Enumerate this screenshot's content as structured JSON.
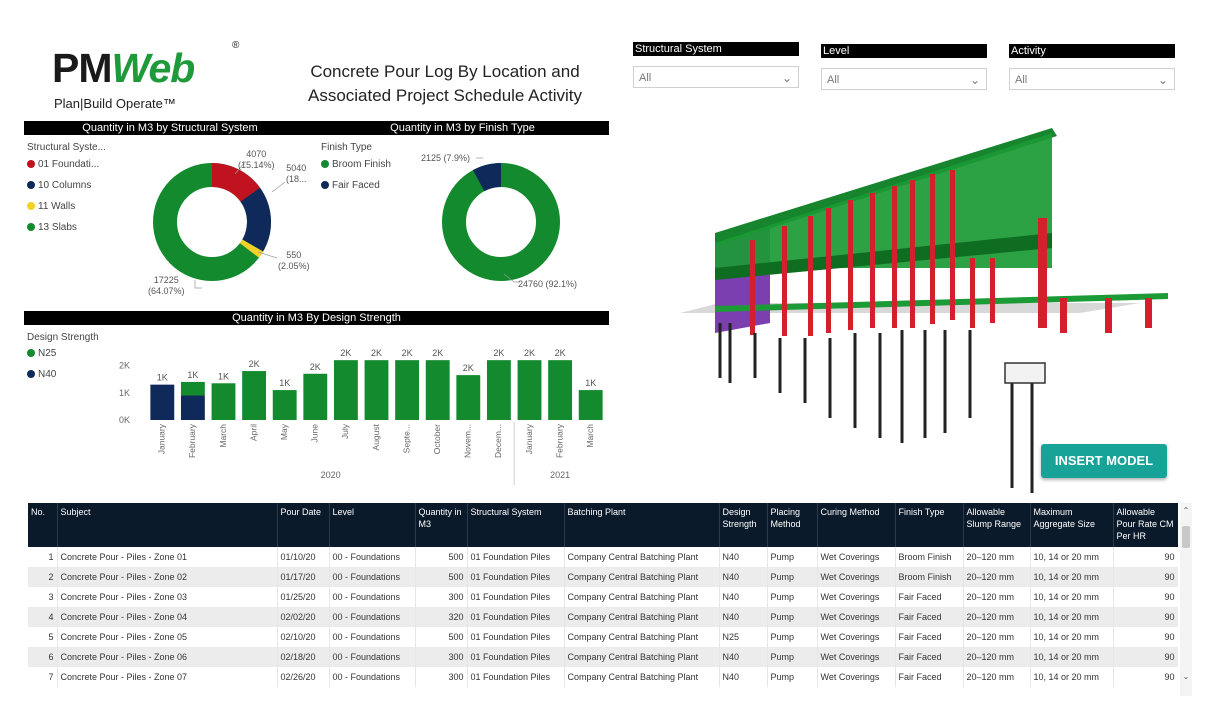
{
  "logo": {
    "part1": "PM",
    "part2": "Web",
    "reg": "®",
    "tagline": "Plan|Build Operate™"
  },
  "report_title": "Concrete Pour Log By Location and Associated Project Schedule Activity",
  "slicers": [
    {
      "label": "Structural System",
      "value": "All"
    },
    {
      "label": "Level",
      "value": "All"
    },
    {
      "label": "Activity",
      "value": "All"
    }
  ],
  "visual1": {
    "header": "Quantity in M3 by Structural System",
    "legend_title": "Structural Syste...",
    "legend": [
      {
        "label": "01 Foundati...",
        "color": "#c0131f"
      },
      {
        "label": "10 Columns",
        "color": "#0f2a5a"
      },
      {
        "label": "11 Walls",
        "color": "#f2d12b"
      },
      {
        "label": "13 Slabs",
        "color": "#138a2d"
      }
    ],
    "labels": {
      "foundation": {
        "value": "4070",
        "pct": "(15.14%)"
      },
      "columns": {
        "value": "5040",
        "pct": "(18..."
      },
      "walls": {
        "value": "550",
        "pct": "(2.05%)"
      },
      "slabs": {
        "value": "17225",
        "pct": "(64.07%)"
      }
    }
  },
  "visual2": {
    "header": "Quantity in M3 by Finish Type",
    "legend_title": "Finish Type",
    "legend": [
      {
        "label": "Broom Finish",
        "color": "#138a2d"
      },
      {
        "label": "Fair Faced",
        "color": "#0f2a5a"
      }
    ],
    "labels": {
      "fair_faced": "2125 (7.9%)",
      "broom": "24760 (92.1%)"
    }
  },
  "visual3": {
    "header": "Quantity in M3 By Design Strength",
    "legend_title": "Design Strength",
    "legend": [
      {
        "label": "N25",
        "color": "#138a2d"
      },
      {
        "label": "N40",
        "color": "#0f2a5a"
      }
    ]
  },
  "chart_data": {
    "type": "bar",
    "title": "Quantity in M3 By Design Strength",
    "categories": [
      "January",
      "February",
      "March",
      "April",
      "May",
      "June",
      "July",
      "August",
      "Septe...",
      "October",
      "Novem...",
      "Decem...",
      "January",
      "February",
      "March"
    ],
    "year_groups": [
      {
        "label": "2020",
        "start": 0,
        "end": 11
      },
      {
        "label": "2021",
        "start": 12,
        "end": 14
      }
    ],
    "series": [
      {
        "name": "N40",
        "color": "#0f2a5a",
        "values": [
          1300,
          900,
          0,
          0,
          0,
          0,
          0,
          0,
          0,
          0,
          0,
          0,
          0,
          0,
          0
        ]
      },
      {
        "name": "N25",
        "color": "#138a2d",
        "values": [
          0,
          500,
          1350,
          1800,
          1100,
          1700,
          2200,
          2200,
          2200,
          2200,
          1650,
          2200,
          2200,
          2200,
          1100
        ]
      }
    ],
    "data_labels": [
      "1K",
      "1K",
      "1K",
      "2K",
      "1K",
      "2K",
      "2K",
      "2K",
      "2K",
      "2K",
      "2K",
      "2K",
      "2K",
      "2K",
      "1K"
    ],
    "yticks": [
      "2K",
      "1K",
      "0K"
    ],
    "ylim": [
      0,
      2500
    ]
  },
  "insert_model_label": "INSERT MODEL",
  "table": {
    "columns": [
      "No.",
      "Subject",
      "Pour Date",
      "Level",
      "Quantity in M3",
      "Structural System",
      "Batching Plant",
      "Design Strength",
      "Placing Method",
      "Curing Method",
      "Finish Type",
      "Allowable Slump Range",
      "Maximum Aggregate Size",
      "Allowable Pour Rate CM Per HR"
    ],
    "rows": [
      [
        "1",
        "Concrete Pour - Piles - Zone 01",
        "01/10/20",
        "00 - Foundations",
        "500",
        "01 Foundation Piles",
        "Company Central Batching Plant",
        "N40",
        "Pump",
        "Wet Coverings",
        "Broom Finish",
        "20–120 mm",
        "10, 14 or 20 mm",
        "90"
      ],
      [
        "2",
        "Concrete Pour - Piles - Zone 02",
        "01/17/20",
        "00 - Foundations",
        "500",
        "01 Foundation Piles",
        "Company Central Batching Plant",
        "N40",
        "Pump",
        "Wet Coverings",
        "Broom Finish",
        "20–120 mm",
        "10, 14 or 20 mm",
        "90"
      ],
      [
        "3",
        "Concrete Pour - Piles - Zone 03",
        "01/25/20",
        "00 - Foundations",
        "300",
        "01 Foundation Piles",
        "Company Central Batching Plant",
        "N40",
        "Pump",
        "Wet Coverings",
        "Fair Faced",
        "20–120 mm",
        "10, 14 or 20 mm",
        "90"
      ],
      [
        "4",
        "Concrete Pour - Piles - Zone 04",
        "02/02/20",
        "00 - Foundations",
        "320",
        "01 Foundation Piles",
        "Company Central Batching Plant",
        "N40",
        "Pump",
        "Wet Coverings",
        "Fair Faced",
        "20–120 mm",
        "10, 14 or 20 mm",
        "90"
      ],
      [
        "5",
        "Concrete Pour - Piles - Zone 05",
        "02/10/20",
        "00 - Foundations",
        "500",
        "01 Foundation Piles",
        "Company Central Batching Plant",
        "N25",
        "Pump",
        "Wet Coverings",
        "Fair Faced",
        "20–120 mm",
        "10, 14 or 20 mm",
        "90"
      ],
      [
        "6",
        "Concrete Pour - Piles - Zone 06",
        "02/18/20",
        "00 - Foundations",
        "300",
        "01 Foundation Piles",
        "Company Central Batching Plant",
        "N40",
        "Pump",
        "Wet Coverings",
        "Fair Faced",
        "20–120 mm",
        "10, 14 or 20 mm",
        "90"
      ],
      [
        "7",
        "Concrete Pour - Piles - Zone 07",
        "02/26/20",
        "00 - Foundations",
        "300",
        "01 Foundation Piles",
        "Company Central Batching Plant",
        "N40",
        "Pump",
        "Wet Coverings",
        "Fair Faced",
        "20–120 mm",
        "10, 14 or 20 mm",
        "90"
      ]
    ]
  }
}
